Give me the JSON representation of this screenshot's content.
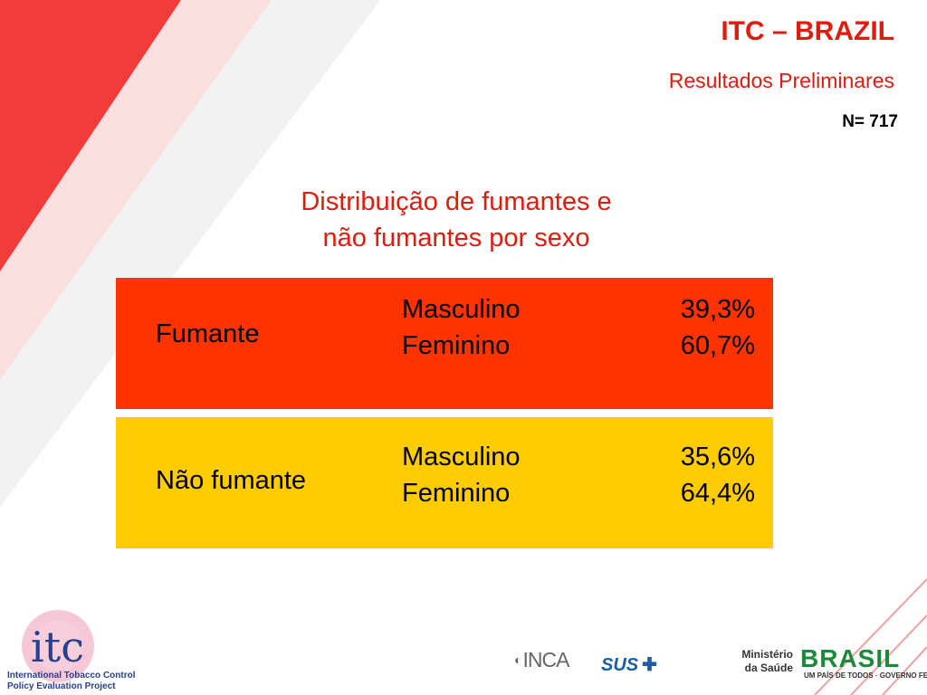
{
  "header": {
    "title": "ITC – BRAZIL",
    "subtitle": "Resultados Preliminares",
    "sample": "N= 717"
  },
  "heading": {
    "line1": "Distribuição de fumantes e",
    "line2": "não fumantes por sexo"
  },
  "groups": [
    {
      "category": "Fumante",
      "color": "#ff3300",
      "rows": [
        {
          "label": "Masculino",
          "value": "39,3%"
        },
        {
          "label": "Feminino",
          "value": "60,7%"
        }
      ]
    },
    {
      "category": "Não fumante",
      "color": "#ffcc00",
      "rows": [
        {
          "label": "Masculino",
          "value": "35,6%"
        },
        {
          "label": "Feminino",
          "value": "64,4%"
        }
      ]
    }
  ],
  "logos": {
    "itc_name": "itc",
    "itc_caption_1": "International Tobacco Control",
    "itc_caption_2": "Policy Evaluation Project",
    "inca": "INCA",
    "sus": "SUS",
    "ministry_1": "Ministério",
    "ministry_2": "da Saúde",
    "brasil": "BRASIL",
    "brasil_caption": "UM PAÍS DE TODOS · GOVERNO FEDERAL"
  },
  "colors": {
    "accent": "#e01c0e",
    "smoker_block": "#ff3300",
    "nonsmoker_block": "#ffcc00"
  }
}
